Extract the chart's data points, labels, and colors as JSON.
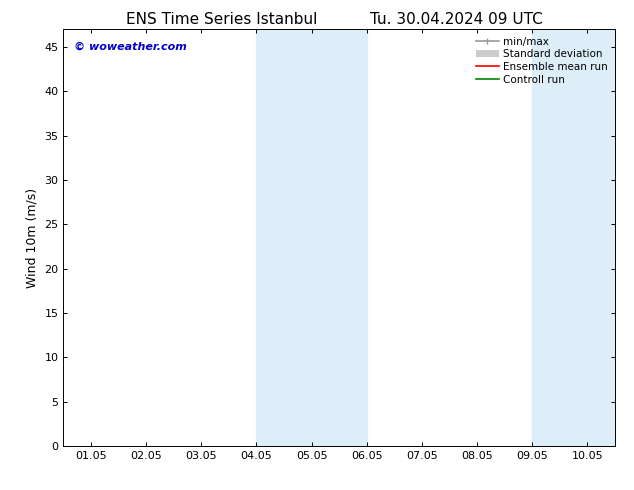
{
  "title_left": "ENS Time Series Istanbul",
  "title_right": "Tu. 30.04.2024 09 UTC",
  "ylabel": "Wind 10m (m/s)",
  "watermark": "© woweather.com",
  "watermark_color": "#0000cc",
  "ylim": [
    0,
    47
  ],
  "yticks": [
    0,
    5,
    10,
    15,
    20,
    25,
    30,
    35,
    40,
    45
  ],
  "xtick_labels": [
    "01.05",
    "02.05",
    "03.05",
    "04.05",
    "05.05",
    "06.05",
    "07.05",
    "08.05",
    "09.05",
    "10.05"
  ],
  "x_positions": [
    0,
    1,
    2,
    3,
    4,
    5,
    6,
    7,
    8,
    9
  ],
  "xlim": [
    -0.5,
    9.5
  ],
  "shaded_bands": [
    {
      "x_start": 3.0,
      "x_end": 4.0,
      "color": "#ddeef8"
    },
    {
      "x_start": 4.0,
      "x_end": 5.0,
      "color": "#ddeef8"
    },
    {
      "x_start": 8.0,
      "x_end": 9.0,
      "color": "#ddeef8"
    },
    {
      "x_start": 9.0,
      "x_end": 9.5,
      "color": "#ddeef8"
    }
  ],
  "background_color": "#ffffff",
  "plot_bg_color": "#ffffff",
  "grid_color": "#dddddd",
  "title_fontsize": 11,
  "axis_label_fontsize": 9,
  "tick_fontsize": 8,
  "watermark_fontsize": 8,
  "legend_fontsize": 7.5
}
